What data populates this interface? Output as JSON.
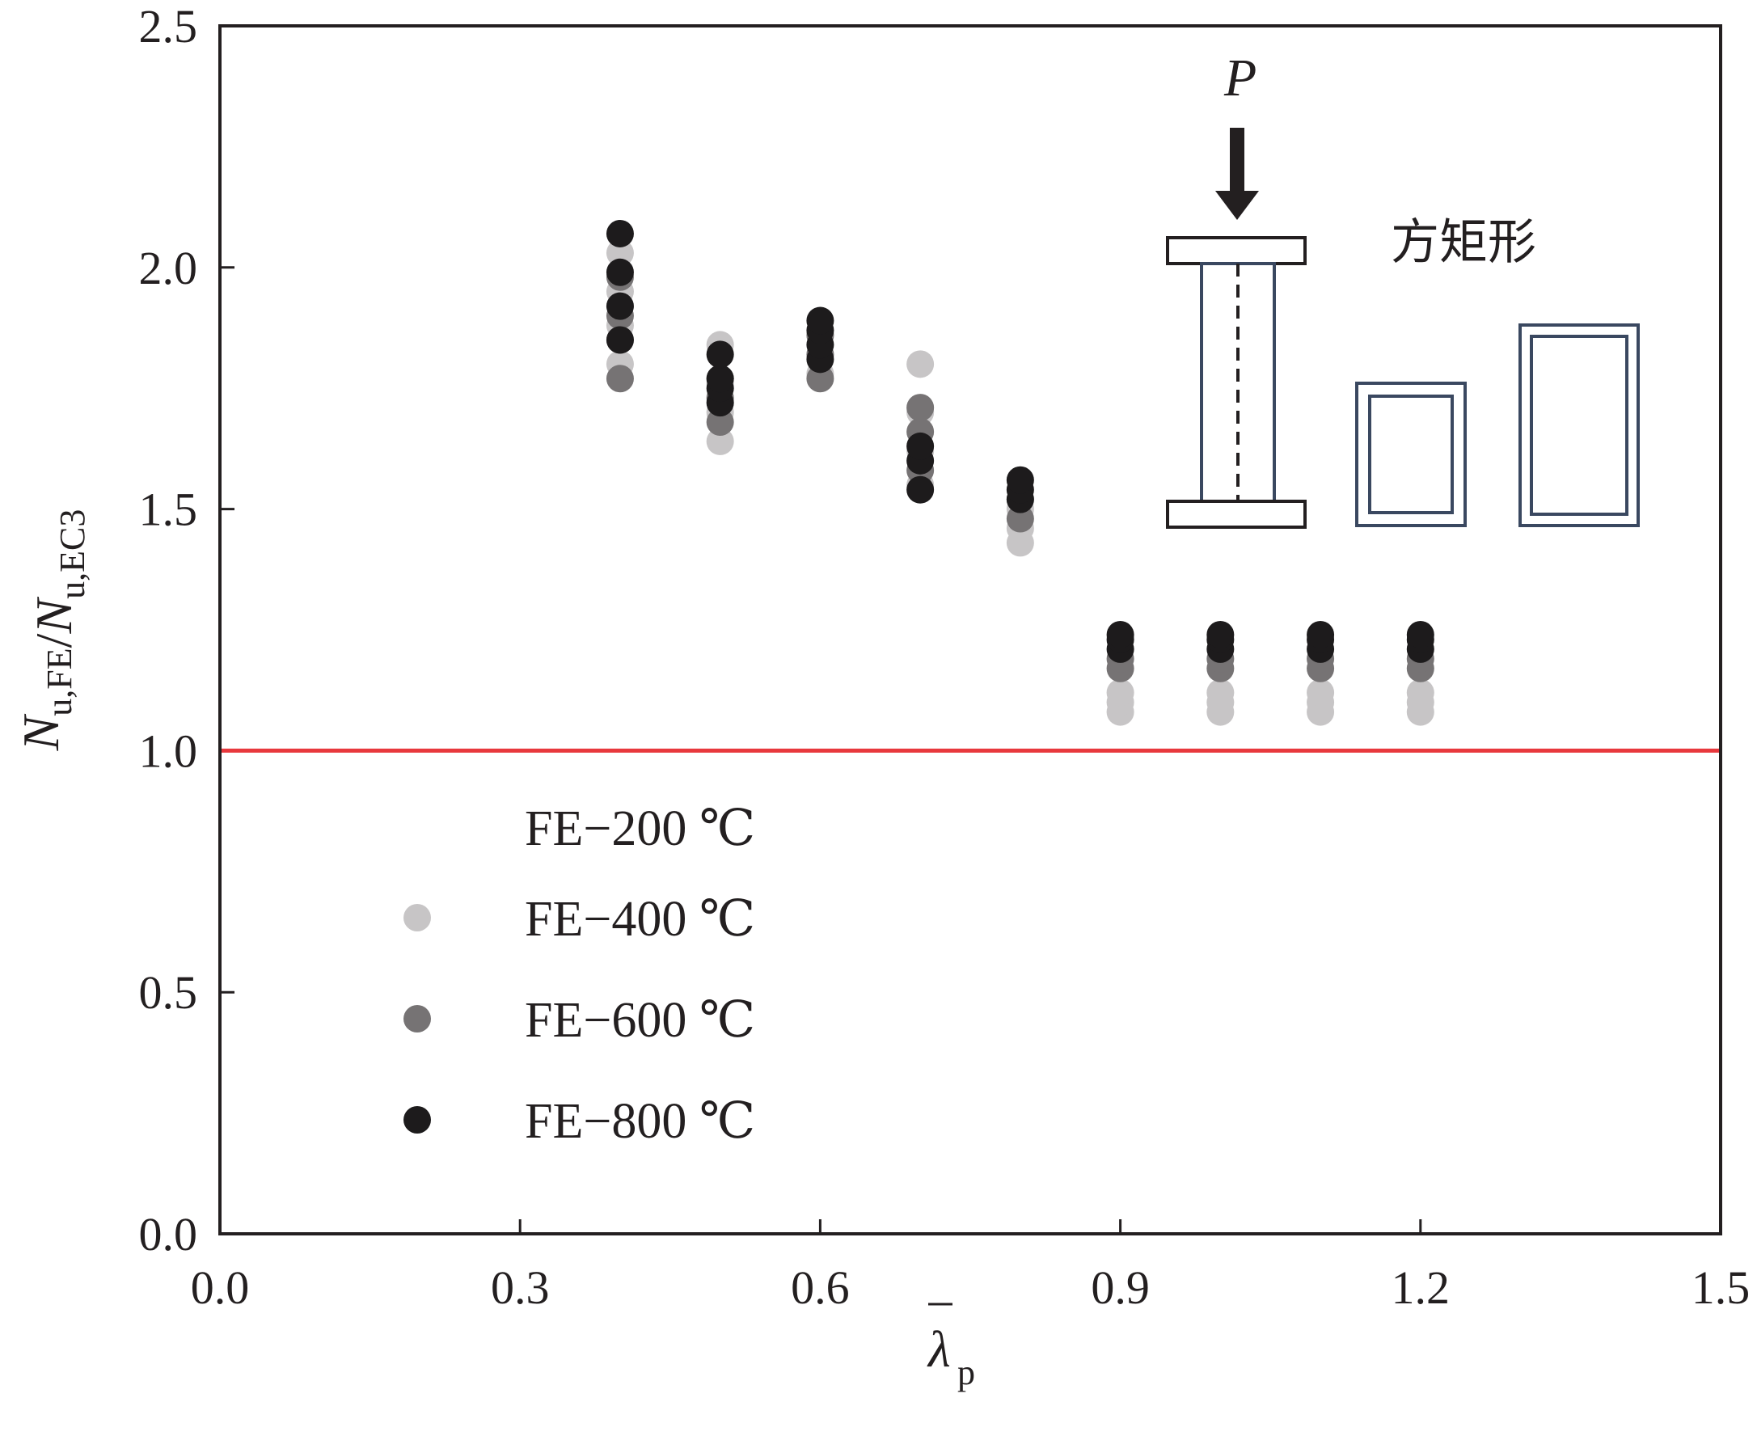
{
  "chart_data": {
    "type": "scatter",
    "x_label": {
      "base": "λ",
      "sub": "p",
      "overline": true
    },
    "y_label": {
      "parts": [
        {
          "text": "N",
          "italic": true
        },
        {
          "text": "u,FE",
          "sub": true
        },
        {
          "text": "/"
        },
        {
          "text": "N",
          "italic": true
        },
        {
          "text": "u,EC3",
          "sub": true
        }
      ]
    },
    "xlim": [
      0,
      1.5
    ],
    "ylim": [
      0,
      2.5
    ],
    "x_ticks": [
      "0.0",
      "0.3",
      "0.6",
      "0.9",
      "1.2",
      "1.5"
    ],
    "y_ticks": [
      "0.0",
      "0.5",
      "1.0",
      "1.5",
      "2.0",
      "2.5"
    ],
    "x_tick_values": [
      0,
      0.3,
      0.6,
      0.9,
      1.2,
      1.5
    ],
    "y_tick_values": [
      0,
      0.5,
      1.0,
      1.5,
      2.0,
      2.5
    ],
    "grid": false,
    "legend_position": "bottom-left",
    "reference_line": {
      "y": 1.0,
      "color": "#e8383d"
    },
    "series": [
      {
        "name": "FE−200 ℃",
        "color": "#ffffff",
        "points": []
      },
      {
        "name": "FE−400 ℃",
        "color": "#c7c5c6",
        "points": [
          [
            0.4,
            1.8
          ],
          [
            0.4,
            1.88
          ],
          [
            0.4,
            1.95
          ],
          [
            0.4,
            2.03
          ],
          [
            0.5,
            1.64
          ],
          [
            0.5,
            1.7
          ],
          [
            0.5,
            1.76
          ],
          [
            0.5,
            1.84
          ],
          [
            0.6,
            1.78
          ],
          [
            0.6,
            1.82
          ],
          [
            0.6,
            1.86
          ],
          [
            0.7,
            1.55
          ],
          [
            0.7,
            1.62
          ],
          [
            0.7,
            1.7
          ],
          [
            0.7,
            1.8
          ],
          [
            0.8,
            1.43
          ],
          [
            0.8,
            1.46
          ],
          [
            0.8,
            1.5
          ],
          [
            0.9,
            1.08
          ],
          [
            0.9,
            1.1
          ],
          [
            0.9,
            1.12
          ],
          [
            1.0,
            1.08
          ],
          [
            1.0,
            1.1
          ],
          [
            1.0,
            1.12
          ],
          [
            1.1,
            1.08
          ],
          [
            1.1,
            1.1
          ],
          [
            1.1,
            1.12
          ],
          [
            1.2,
            1.08
          ],
          [
            1.2,
            1.1
          ],
          [
            1.2,
            1.12
          ]
        ]
      },
      {
        "name": "FE−600 ℃",
        "color": "#767374",
        "points": [
          [
            0.4,
            1.77
          ],
          [
            0.4,
            1.85
          ],
          [
            0.4,
            1.9
          ],
          [
            0.4,
            1.98
          ],
          [
            0.5,
            1.68
          ],
          [
            0.5,
            1.73
          ],
          [
            0.5,
            1.77
          ],
          [
            0.6,
            1.77
          ],
          [
            0.6,
            1.82
          ],
          [
            0.6,
            1.86
          ],
          [
            0.7,
            1.58
          ],
          [
            0.7,
            1.66
          ],
          [
            0.7,
            1.71
          ],
          [
            0.8,
            1.48
          ],
          [
            0.8,
            1.52
          ],
          [
            0.9,
            1.17
          ],
          [
            0.9,
            1.19
          ],
          [
            1.0,
            1.17
          ],
          [
            1.0,
            1.19
          ],
          [
            1.1,
            1.17
          ],
          [
            1.1,
            1.19
          ],
          [
            1.2,
            1.17
          ],
          [
            1.2,
            1.19
          ]
        ]
      },
      {
        "name": "FE−800 ℃",
        "color": "#1d1b1c",
        "points": [
          [
            0.4,
            1.85
          ],
          [
            0.4,
            1.92
          ],
          [
            0.4,
            1.99
          ],
          [
            0.4,
            2.07
          ],
          [
            0.5,
            1.72
          ],
          [
            0.5,
            1.75
          ],
          [
            0.5,
            1.77
          ],
          [
            0.5,
            1.82
          ],
          [
            0.6,
            1.81
          ],
          [
            0.6,
            1.84
          ],
          [
            0.6,
            1.87
          ],
          [
            0.6,
            1.89
          ],
          [
            0.7,
            1.54
          ],
          [
            0.7,
            1.6
          ],
          [
            0.7,
            1.63
          ],
          [
            0.8,
            1.52
          ],
          [
            0.8,
            1.54
          ],
          [
            0.8,
            1.56
          ],
          [
            0.9,
            1.21
          ],
          [
            0.9,
            1.23
          ],
          [
            0.9,
            1.24
          ],
          [
            1.0,
            1.21
          ],
          [
            1.0,
            1.23
          ],
          [
            1.0,
            1.24
          ],
          [
            1.1,
            1.21
          ],
          [
            1.1,
            1.23
          ],
          [
            1.1,
            1.24
          ],
          [
            1.2,
            1.21
          ],
          [
            1.2,
            1.23
          ],
          [
            1.2,
            1.24
          ]
        ]
      }
    ],
    "inset": {
      "load_label": "P",
      "section_label": "方矩形"
    }
  }
}
